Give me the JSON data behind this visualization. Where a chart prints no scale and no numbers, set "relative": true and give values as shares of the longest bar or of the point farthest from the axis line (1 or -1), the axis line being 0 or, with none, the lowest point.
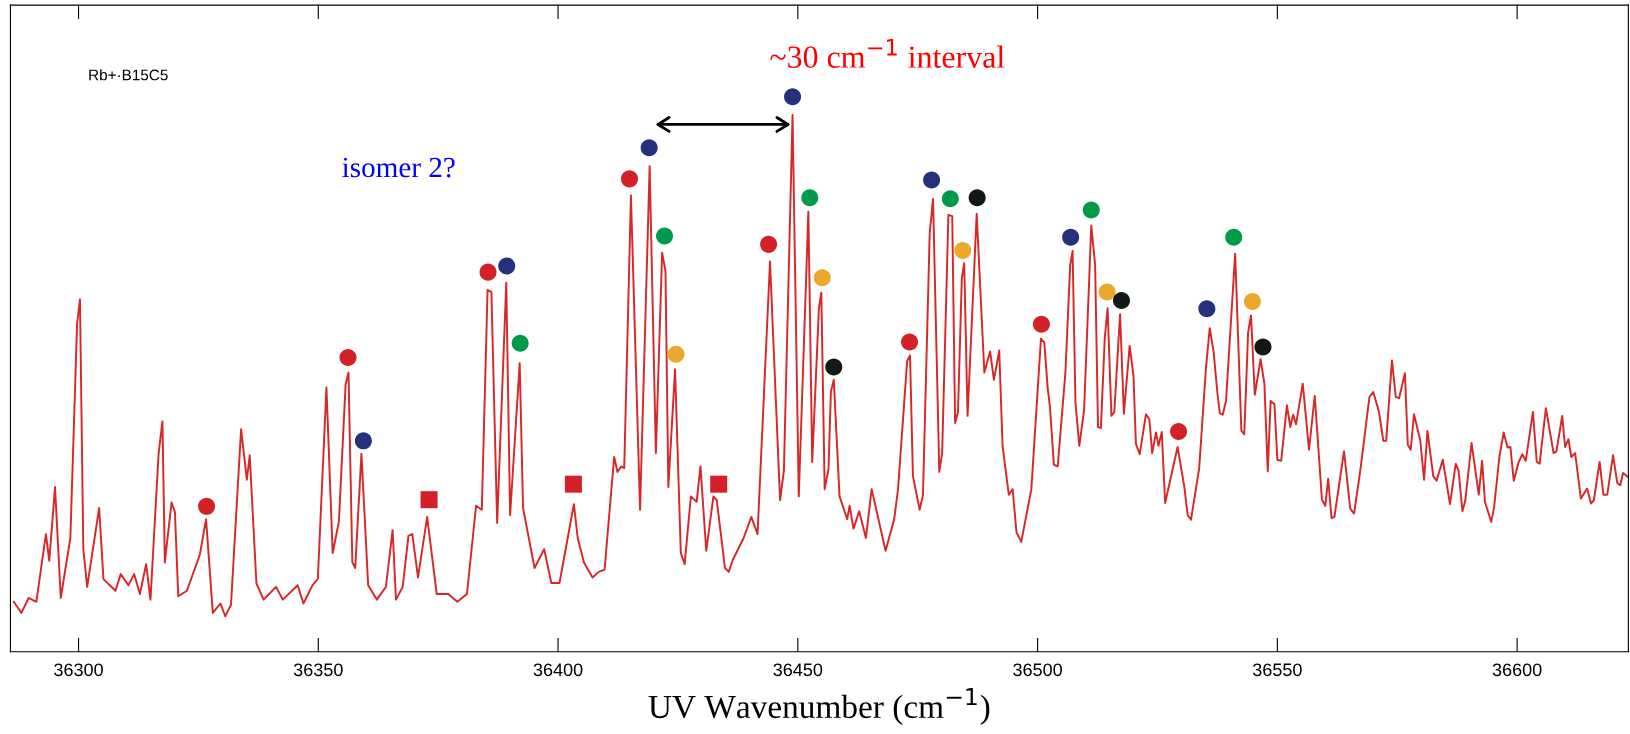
{
  "chart_data": {
    "type": "line",
    "relative": true,
    "xlabel": "UV Wavenumber (cm$^{−1}$)",
    "annotations": [
      "Rb+·B15C5",
      "isomer 2?",
      "~30 cm$^{−1}$ interval"
    ],
    "xlim": [
      36285.8,
      36623.2
    ],
    "xticks": [
      36300,
      36350,
      36400,
      36450,
      36500,
      36550,
      36600
    ],
    "grid": false,
    "legend": false,
    "tick_labels": "x",
    "series": [
      {
        "color": "#d62828",
        "marker": "none",
        "line_style": "solid",
        "x": [
          36286.5,
          36288.1,
          36289.6,
          36291.2,
          36293.2,
          36293.9,
          36295.1,
          36296.3,
          36298.3,
          36299.7,
          36300.3,
          36301.0,
          36301.8,
          36304.3,
          36305.2,
          36307.7,
          36308.8,
          36310.4,
          36311.6,
          36312.8,
          36314.1,
          36315.0,
          36316.7,
          36317.5,
          36318.0,
          36319.4,
          36320.1,
          36320.8,
          36322.6,
          36325.3,
          36326.6,
          36328.0,
          36329.6,
          36330.6,
          36331.8,
          36333.9,
          36335.1,
          36335.7,
          36337.1,
          36338.6,
          36341.2,
          36342.6,
          36345.7,
          36346.9,
          36348.8,
          36349.9,
          36351.7,
          36353.0,
          36354.3,
          36355.7,
          36356.3,
          36357.1,
          36357.7,
          36359.0,
          36360.4,
          36362.2,
          36364.1,
          36365.5,
          36366.2,
          36367.6,
          36368.8,
          36369.6,
          36370.8,
          36372.7,
          36374.7,
          36377.1,
          36379.0,
          36381.0,
          36382.9,
          36384.1,
          36385.3,
          36386.1,
          36387.3,
          36389.2,
          36390.0,
          36392.0,
          36392.7,
          36395.1,
          36397.1,
          36398.6,
          36400.3,
          36403.3,
          36404.1,
          36405.4,
          36407.2,
          36408.5,
          36409.7,
          36411.7,
          36412.4,
          36413.2,
          36413.8,
          36415.2,
          36417.1,
          36419.1,
          36420.4,
          36421.7,
          36422.4,
          36423.0,
          36424.4,
          36425.6,
          36426.4,
          36427.7,
          36428.9,
          36429.7,
          36430.9,
          36432.4,
          36433.1,
          36434.8,
          36435.6,
          36436.4,
          36438.7,
          36440.3,
          36441.6,
          36444.2,
          36446.3,
          36447.1,
          36448.9,
          36450.2,
          36452.2,
          36453.0,
          36454.4,
          36454.9,
          36455.6,
          36456.4,
          36456.9,
          36457.5,
          36458.7,
          36460.3,
          36460.8,
          36461.6,
          36462.8,
          36464.2,
          36465.4,
          36468.3,
          36470.1,
          36470.9,
          36472.8,
          36473.4,
          36474.0,
          36475.4,
          36476.1,
          36477.5,
          36478.2,
          36479.5,
          36480.1,
          36481.4,
          36482.2,
          36482.8,
          36483.4,
          36484.2,
          36484.7,
          36485.4,
          36487.3,
          36488.9,
          36490.1,
          36490.9,
          36492.0,
          36492.7,
          36494.0,
          36494.8,
          36495.6,
          36496.6,
          36498.7,
          36500.7,
          36501.4,
          36502.1,
          36502.6,
          36503.4,
          36504.2,
          36505.8,
          36506.8,
          36507.3,
          36507.9,
          36508.7,
          36509.7,
          36511.2,
          36512.0,
          36512.6,
          36513.2,
          36514.0,
          36514.6,
          36515.4,
          36516.0,
          36517.2,
          36518.0,
          36519.2,
          36520.0,
          36520.5,
          36521.3,
          36522.6,
          36523.3,
          36523.9,
          36524.7,
          36525.2,
          36525.9,
          36526.6,
          36529.2,
          36530.6,
          36531.3,
          36532.0,
          36533.7,
          36535.1,
          36535.9,
          36536.7,
          36537.5,
          36538.0,
          36538.6,
          36539.3,
          36541.2,
          36542.5,
          36543.1,
          36543.9,
          36544.5,
          36545.3,
          36546.5,
          36547.3,
          36548.0,
          36548.6,
          36549.4,
          36550.0,
          36550.8,
          36552.0,
          36552.7,
          36553.3,
          36553.9,
          36555.3,
          36556.6,
          36557.8,
          36559.3,
          36560.0,
          36560.6,
          36561.3,
          36561.9,
          36563.9,
          36565.2,
          36566.0,
          36567.3,
          36569.2,
          36570.0,
          36571.2,
          36572.1,
          36572.7,
          36573.9,
          36574.7,
          36575.4,
          36576.6,
          36577.2,
          36577.8,
          36578.5,
          36579.8,
          36580.6,
          36581.3,
          36582.5,
          36583.2,
          36584.5,
          36586.0,
          36587.2,
          36587.8,
          36588.6,
          36589.2,
          36590.5,
          36592.0,
          36592.7,
          36593.3,
          36594.6,
          36595.2,
          36596.3,
          36597.2,
          36598.0,
          36598.6,
          36599.3,
          36600.3,
          36601.1,
          36601.8,
          36603.3,
          36604.1,
          36604.7,
          36606.0,
          36607.6,
          36608.2,
          36609.4,
          36610.0,
          36610.7,
          36611.3,
          36612.1,
          36613.3,
          36614.6,
          36615.4,
          36616.0,
          36617.2,
          36618.0,
          36618.8,
          36620.0,
          36620.9,
          36621.5,
          36622.1,
          36623.1
        ],
        "values": [
          0.09,
          0.07,
          0.097,
          0.09,
          0.212,
          0.164,
          0.297,
          0.097,
          0.205,
          0.591,
          0.635,
          0.185,
          0.117,
          0.259,
          0.131,
          0.11,
          0.14,
          0.12,
          0.14,
          0.104,
          0.158,
          0.094,
          0.357,
          0.415,
          0.161,
          0.269,
          0.252,
          0.1,
          0.11,
          0.175,
          0.239,
          0.07,
          0.087,
          0.064,
          0.085,
          0.401,
          0.31,
          0.354,
          0.123,
          0.094,
          0.117,
          0.094,
          0.12,
          0.087,
          0.12,
          0.131,
          0.476,
          0.178,
          0.235,
          0.482,
          0.503,
          0.161,
          0.151,
          0.357,
          0.12,
          0.094,
          0.117,
          0.219,
          0.094,
          0.117,
          0.209,
          0.212,
          0.134,
          0.243,
          0.104,
          0.104,
          0.09,
          0.104,
          0.263,
          0.256,
          0.652,
          0.648,
          0.232,
          0.665,
          0.246,
          0.52,
          0.259,
          0.151,
          0.185,
          0.124,
          0.124,
          0.266,
          0.205,
          0.161,
          0.134,
          0.144,
          0.148,
          0.351,
          0.324,
          0.334,
          0.331,
          0.822,
          0.256,
          0.875,
          0.358,
          0.719,
          0.686,
          0.297,
          0.509,
          0.178,
          0.158,
          0.28,
          0.27,
          0.334,
          0.182,
          0.28,
          0.273,
          0.151,
          0.144,
          0.165,
          0.205,
          0.243,
          0.212,
          0.703,
          0.273,
          0.327,
          0.967,
          0.28,
          0.793,
          0.342,
          0.619,
          0.647,
          0.293,
          0.329,
          0.469,
          0.49,
          0.28,
          0.239,
          0.263,
          0.222,
          0.253,
          0.205,
          0.293,
          0.182,
          0.239,
          0.293,
          0.524,
          0.534,
          0.317,
          0.256,
          0.283,
          0.754,
          0.816,
          0.324,
          0.358,
          0.787,
          0.785,
          0.412,
          0.432,
          0.673,
          0.7,
          0.425,
          0.789,
          0.503,
          0.541,
          0.49,
          0.543,
          0.371,
          0.283,
          0.293,
          0.215,
          0.198,
          0.293,
          0.564,
          0.557,
          0.476,
          0.439,
          0.337,
          0.334,
          0.503,
          0.697,
          0.722,
          0.449,
          0.371,
          0.436,
          0.768,
          0.697,
          0.405,
          0.403,
          0.564,
          0.619,
          0.425,
          0.432,
          0.608,
          0.429,
          0.551,
          0.497,
          0.375,
          0.356,
          0.428,
          0.419,
          0.358,
          0.395,
          0.371,
          0.396,
          0.268,
          0.369,
          0.297,
          0.246,
          0.238,
          0.331,
          0.51,
          0.583,
          0.541,
          0.466,
          0.43,
          0.427,
          0.452,
          0.717,
          0.398,
          0.392,
          0.575,
          0.606,
          0.463,
          0.527,
          0.483,
          0.325,
          0.452,
          0.446,
          0.346,
          0.344,
          0.444,
          0.405,
          0.427,
          0.41,
          0.483,
          0.364,
          0.461,
          0.274,
          0.263,
          0.312,
          0.241,
          0.243,
          0.361,
          0.258,
          0.249,
          0.327,
          0.459,
          0.468,
          0.432,
          0.38,
          0.38,
          0.525,
          0.459,
          0.457,
          0.502,
          0.373,
          0.364,
          0.428,
          0.381,
          0.31,
          0.398,
          0.317,
          0.308,
          0.346,
          0.266,
          0.339,
          0.326,
          0.253,
          0.273,
          0.376,
          0.283,
          0.344,
          0.27,
          0.234,
          0.26,
          0.351,
          0.395,
          0.368,
          0.369,
          0.308,
          0.341,
          0.356,
          0.344,
          0.432,
          0.342,
          0.339,
          0.439,
          0.358,
          0.361,
          0.425,
          0.369,
          0.383,
          0.351,
          0.358,
          0.276,
          0.294,
          0.267,
          0.273,
          0.342,
          0.283,
          0.283,
          0.354,
          0.304,
          0.3,
          0.322,
          0.315
        ]
      },
      {
        "type": "scatter",
        "color": "#d42127",
        "marker": "circle",
        "x": [
          36326.7,
          36356.2,
          36385.4,
          36414.9,
          36443.9,
          36473.3,
          36500.8,
          36529.4
        ],
        "values": [
          0.262,
          0.53,
          0.684,
          0.852,
          0.734,
          0.558,
          0.59,
          0.397
        ]
      },
      {
        "type": "scatter",
        "color": "#25317a",
        "marker": "circle",
        "x": [
          36359.4,
          36389.3,
          36419.0,
          36448.9,
          36477.9,
          36506.9,
          36535.3
        ],
        "values": [
          0.38,
          0.695,
          0.908,
          1.0,
          0.85,
          0.747,
          0.618
        ]
      },
      {
        "type": "scatter",
        "color": "#009a4a",
        "marker": "circle",
        "x": [
          36392.1,
          36422.2,
          36452.5,
          36481.8,
          36511.2,
          36540.9
        ],
        "values": [
          0.556,
          0.749,
          0.818,
          0.816,
          0.796,
          0.747
        ]
      },
      {
        "type": "scatter",
        "color": "#eaa92a",
        "marker": "circle",
        "x": [
          36424.6,
          36455.1,
          36484.4,
          36514.5,
          36544.8
        ],
        "values": [
          0.536,
          0.674,
          0.723,
          0.648,
          0.631
        ]
      },
      {
        "type": "scatter",
        "color": "#121812",
        "marker": "circle",
        "x": [
          36457.5,
          36487.4,
          36517.5,
          36547.0
        ],
        "values": [
          0.513,
          0.818,
          0.633,
          0.549
        ]
      },
      {
        "type": "scatter",
        "color": "#d42127",
        "marker": "square",
        "x": [
          36373.1,
          36403.2,
          36433.5
        ],
        "values": [
          0.274,
          0.302,
          0.302
        ]
      }
    ]
  }
}
